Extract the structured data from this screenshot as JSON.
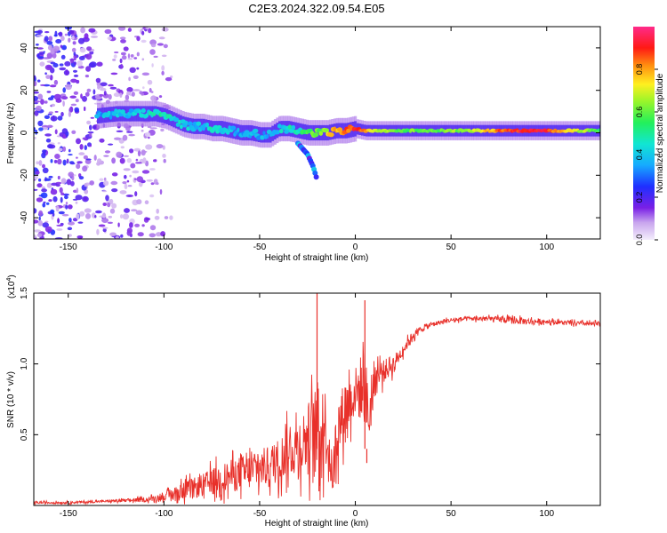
{
  "title": "C2E3.2024.322.09.54.E05",
  "colors": {
    "trace": "#e8302a",
    "axis": "#000000"
  },
  "chart_data": [
    {
      "type": "heatmap",
      "title": "C2E3.2024.322.09.54.E05",
      "xlabel": "Height of straight line (km)",
      "ylabel": "Frequency (Hz)",
      "xlim": [
        -168,
        128
      ],
      "ylim": [
        -50,
        50
      ],
      "x_ticks": [
        -150,
        -100,
        -50,
        0,
        50,
        100
      ],
      "y_ticks": [
        -40,
        -20,
        0,
        20,
        40
      ],
      "colorbar": {
        "label": "Normalized spectral amplitude",
        "range": [
          0,
          1
        ],
        "ticks": [
          0.0,
          0.2,
          0.4,
          0.6,
          0.8
        ]
      },
      "ridge": {
        "x": [
          -135,
          -125,
          -115,
          -105,
          -100,
          -95,
          -90,
          -85,
          -80,
          -75,
          -70,
          -65,
          -60,
          -55,
          -50,
          -45,
          -40,
          -35,
          -30,
          -25,
          -20,
          -15,
          -10,
          -5,
          0,
          5,
          10,
          20,
          40,
          60,
          80,
          100,
          128
        ],
        "freq": [
          8,
          9,
          9,
          9,
          8,
          6,
          4,
          3,
          3,
          2,
          2,
          1,
          0,
          0,
          -1,
          -1,
          2,
          2,
          1,
          0,
          0,
          0,
          1,
          1,
          2,
          1,
          1,
          1,
          1,
          1,
          1,
          1,
          1
        ],
        "amplitude": [
          0.35,
          0.4,
          0.4,
          0.45,
          0.5,
          0.45,
          0.4,
          0.4,
          0.4,
          0.45,
          0.4,
          0.4,
          0.35,
          0.35,
          0.35,
          0.35,
          0.4,
          0.45,
          0.45,
          0.55,
          0.6,
          0.7,
          0.8,
          0.85,
          0.9,
          0.85,
          0.7,
          0.6,
          0.6,
          0.65,
          0.9,
          0.9,
          0.55
        ]
      },
      "branch": {
        "x": [
          -30,
          -25,
          -22,
          -20
        ],
        "freq": [
          -5,
          -10,
          -16,
          -22
        ]
      }
    },
    {
      "type": "line",
      "xlabel": "Height of straight line (km)",
      "ylabel": "SNR (10 * v/v)",
      "y_multiplier": "(x10",
      "y_multiplier_exp": "4",
      "y_multiplier_close": ")",
      "xlim": [
        -168,
        128
      ],
      "ylim": [
        0,
        1.5
      ],
      "x_ticks": [
        -150,
        -100,
        -50,
        0,
        50,
        100
      ],
      "y_ticks": [
        0.5,
        1.0,
        1.5
      ],
      "y_tick_labels": [
        "0.5",
        "1.0",
        "1.5"
      ],
      "series": [
        {
          "name": "SNR",
          "x": [
            -168,
            -150,
            -130,
            -110,
            -100,
            -95,
            -90,
            -85,
            -80,
            -75,
            -70,
            -65,
            -60,
            -55,
            -50,
            -45,
            -40,
            -35,
            -30,
            -25,
            -20,
            -15,
            -12,
            -10,
            -5,
            0,
            5,
            7,
            10,
            15,
            20,
            25,
            30,
            35,
            40,
            50,
            60,
            70,
            80,
            90,
            100,
            110,
            128
          ],
          "y": [
            0.02,
            0.02,
            0.03,
            0.04,
            0.06,
            0.08,
            0.1,
            0.12,
            0.14,
            0.17,
            0.19,
            0.21,
            0.23,
            0.24,
            0.26,
            0.28,
            0.32,
            0.38,
            0.42,
            0.48,
            0.52,
            0.56,
            0.15,
            0.5,
            0.7,
            0.8,
            0.85,
            0.6,
            0.9,
            0.95,
            1.0,
            1.1,
            1.2,
            1.25,
            1.28,
            1.31,
            1.32,
            1.32,
            1.31,
            1.3,
            1.3,
            1.29,
            1.28
          ],
          "amp": [
            0.01,
            0.01,
            0.01,
            0.02,
            0.03,
            0.06,
            0.08,
            0.09,
            0.1,
            0.12,
            0.13,
            0.14,
            0.15,
            0.16,
            0.17,
            0.18,
            0.2,
            0.22,
            0.26,
            0.3,
            0.45,
            0.35,
            0.1,
            0.3,
            0.25,
            0.22,
            0.35,
            0.25,
            0.18,
            0.1,
            0.08,
            0.05,
            0.04,
            0.03,
            0.02,
            0.02,
            0.02,
            0.02,
            0.03,
            0.03,
            0.02,
            0.02,
            0.02
          ]
        }
      ],
      "spikes": [
        {
          "x": -20,
          "y": 1.5
        },
        {
          "x": -19,
          "y": 0.1
        },
        {
          "x": 5,
          "y": 1.45
        },
        {
          "x": 6,
          "y": 0.3
        }
      ]
    }
  ]
}
